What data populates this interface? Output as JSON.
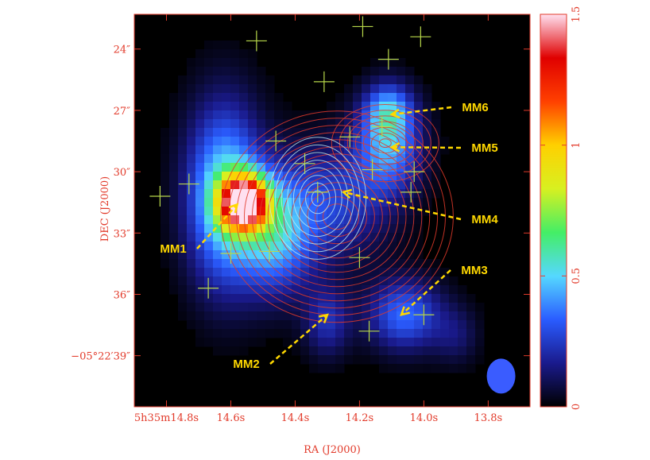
{
  "chart_data": {
    "type": "heatmap",
    "title": "",
    "xlabel": "RA (J2000)",
    "ylabel": "DEC (J2000)",
    "x_ticks": [
      "5h35m14.8s",
      "14.6s",
      "14.4s",
      "14.2s",
      "14.0s",
      "13.8s"
    ],
    "y_ticks": [
      "24″",
      "27″",
      "30″",
      "33″",
      "36″",
      "−05°22′39″"
    ],
    "colorbar": {
      "ticks": [
        "0",
        "0.5",
        "1",
        "1.5"
      ],
      "range": [
        0,
        1.5
      ],
      "colormap": [
        "#000000",
        "#1a1a8c",
        "#2a5cff",
        "#55d8ff",
        "#44ee66",
        "#d8f020",
        "#ffd000",
        "#ff4000",
        "#e00000",
        "#ffe0f0"
      ]
    },
    "sources": [
      {
        "name": "MM1",
        "ra_s": 14.58,
        "dec": 31.6
      },
      {
        "name": "MM2",
        "ra_s": 14.3,
        "dec": 37.0
      },
      {
        "name": "MM3",
        "ra_s": 14.07,
        "dec": 37.0
      },
      {
        "name": "MM4",
        "ra_s": 14.25,
        "dec": 31.0
      },
      {
        "name": "MM5",
        "ra_s": 14.1,
        "dec": 28.8
      },
      {
        "name": "MM6",
        "ra_s": 14.1,
        "dec": 27.2
      }
    ],
    "crosses": [
      [
        14.52,
        23.6
      ],
      [
        14.31,
        25.6
      ],
      [
        14.11,
        24.5
      ],
      [
        14.19,
        22.9
      ],
      [
        14.01,
        23.4
      ],
      [
        14.73,
        30.6
      ],
      [
        14.82,
        31.2
      ],
      [
        14.46,
        28.5
      ],
      [
        14.37,
        29.6
      ],
      [
        14.23,
        28.3
      ],
      [
        14.13,
        27.8
      ],
      [
        14.16,
        29.9
      ],
      [
        14.03,
        30.0
      ],
      [
        14.04,
        31.0
      ],
      [
        14.33,
        31.0
      ],
      [
        14.6,
        34.0
      ],
      [
        14.48,
        33.9
      ],
      [
        14.2,
        34.2
      ],
      [
        14.17,
        37.8
      ],
      [
        14.67,
        35.7
      ],
      [
        14.0,
        37.0
      ]
    ],
    "emission_blobs": [
      {
        "ra_s": 14.56,
        "dec": 31.5,
        "peak": 1.45,
        "sra": 0.05,
        "sdec": 0.9
      },
      {
        "ra_s": 14.62,
        "dec": 31.2,
        "peak": 0.55,
        "sra": 0.08,
        "sdec": 3.0
      },
      {
        "ra_s": 14.46,
        "dec": 33.0,
        "peak": 0.45,
        "sra": 0.08,
        "sdec": 2.0
      },
      {
        "ra_s": 14.11,
        "dec": 28.7,
        "peak": 0.42,
        "sra": 0.07,
        "sdec": 1.6
      },
      {
        "ra_s": 14.11,
        "dec": 27.0,
        "peak": 0.32,
        "sra": 0.05,
        "sdec": 0.9
      },
      {
        "ra_s": 14.28,
        "dec": 31.5,
        "peak": 0.25,
        "sra": 0.12,
        "sdec": 2.0
      },
      {
        "ra_s": 14.06,
        "dec": 37.0,
        "peak": 0.35,
        "sra": 0.08,
        "sdec": 1.2
      },
      {
        "ra_s": 14.3,
        "dec": 37.3,
        "peak": 0.22,
        "sra": 0.05,
        "sdec": 1.2
      },
      {
        "ra_s": 13.9,
        "dec": 38.0,
        "peak": 0.12,
        "sra": 0.05,
        "sdec": 1.0
      }
    ],
    "beam": {
      "ra_s": 13.76,
      "dec": 40.0,
      "sra": 0.03,
      "sdec": 0.8
    }
  }
}
